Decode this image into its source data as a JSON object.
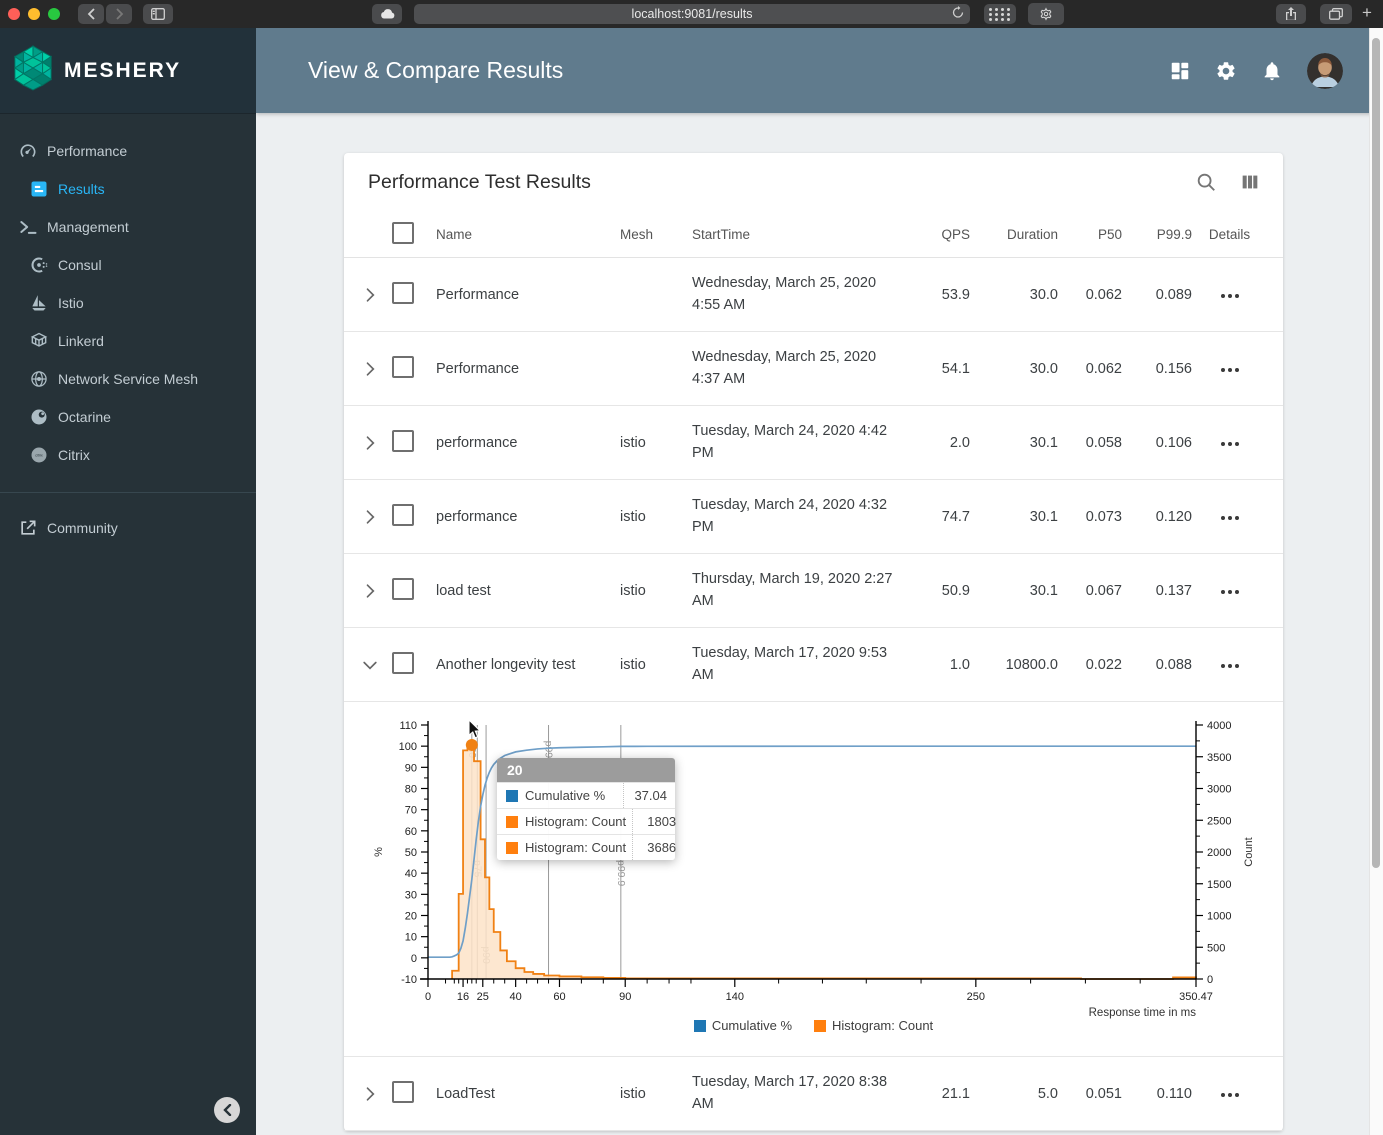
{
  "browser": {
    "url": "localhost:9081/results",
    "new_tab_label": "+"
  },
  "brand": {
    "name": "MESHERY"
  },
  "header": {
    "title": "View & Compare Results"
  },
  "sidebar": {
    "items": [
      {
        "label": "Performance",
        "icon": "gauge-icon",
        "indent": false,
        "active": false
      },
      {
        "label": "Results",
        "icon": "results-icon",
        "indent": true,
        "active": true
      },
      {
        "label": "Management",
        "icon": "terminal-icon",
        "indent": false,
        "active": false
      },
      {
        "label": "Consul",
        "icon": "consul-icon",
        "indent": true,
        "active": false
      },
      {
        "label": "Istio",
        "icon": "istio-icon",
        "indent": true,
        "active": false
      },
      {
        "label": "Linkerd",
        "icon": "linkerd-icon",
        "indent": true,
        "active": false
      },
      {
        "label": "Network Service Mesh",
        "icon": "nsm-icon",
        "indent": true,
        "active": false
      },
      {
        "label": "Octarine",
        "icon": "octarine-icon",
        "indent": true,
        "active": false
      },
      {
        "label": "Citrix",
        "icon": "citrix-icon",
        "indent": true,
        "active": false
      }
    ],
    "footer_item": {
      "label": "Community",
      "icon": "external-link-icon"
    }
  },
  "card": {
    "title": "Performance Test Results"
  },
  "table": {
    "columns": [
      "Name",
      "Mesh",
      "StartTime",
      "QPS",
      "Duration",
      "P50",
      "P99.9",
      "Details"
    ],
    "rows": [
      {
        "name": "Performance",
        "mesh": "",
        "start": "Wednesday, March 25, 2020 4:55 AM",
        "qps": "53.9",
        "duration": "30.0",
        "p50": "0.062",
        "p999": "0.089",
        "expanded": false
      },
      {
        "name": "Performance",
        "mesh": "",
        "start": "Wednesday, March 25, 2020 4:37 AM",
        "qps": "54.1",
        "duration": "30.0",
        "p50": "0.062",
        "p999": "0.156",
        "expanded": false
      },
      {
        "name": "performance",
        "mesh": "istio",
        "start": "Tuesday, March 24, 2020 4:42 PM",
        "qps": "2.0",
        "duration": "30.1",
        "p50": "0.058",
        "p999": "0.106",
        "expanded": false
      },
      {
        "name": "performance",
        "mesh": "istio",
        "start": "Tuesday, March 24, 2020 4:32 PM",
        "qps": "74.7",
        "duration": "30.1",
        "p50": "0.073",
        "p999": "0.120",
        "expanded": false
      },
      {
        "name": "load test",
        "mesh": "istio",
        "start": "Thursday, March 19, 2020 2:27 AM",
        "qps": "50.9",
        "duration": "30.1",
        "p50": "0.067",
        "p999": "0.137",
        "expanded": false
      },
      {
        "name": "Another longevity test",
        "mesh": "istio",
        "start": "Tuesday, March 17, 2020 9:53 AM",
        "qps": "1.0",
        "duration": "10800.0",
        "p50": "0.022",
        "p999": "0.088",
        "expanded": true
      },
      {
        "name": "LoadTest",
        "mesh": "istio",
        "start": "Tuesday, March 17, 2020 8:38 AM",
        "qps": "21.1",
        "duration": "5.0",
        "p50": "0.051",
        "p999": "0.110",
        "expanded": false
      }
    ]
  },
  "chart_data": {
    "type": "histogram-and-cumulative-line",
    "xlabel": "Response time in ms",
    "ylabel_left": "%",
    "ylabel_right": "Count",
    "xlim": [
      0,
      350.47
    ],
    "ylim_left": [
      -10,
      110
    ],
    "ylim_right": [
      0,
      4000
    ],
    "x_ticks": [
      0,
      16,
      25,
      40,
      60,
      90,
      140,
      250,
      350.47
    ],
    "x_minor_ticks": [
      8,
      12,
      14,
      18,
      20,
      22,
      30,
      35,
      45,
      50,
      55,
      70,
      80,
      100,
      110,
      120,
      160,
      180,
      200,
      225,
      275,
      300,
      325
    ],
    "left_ticks": [
      -10,
      0,
      10,
      20,
      30,
      40,
      50,
      60,
      70,
      80,
      90,
      100,
      110
    ],
    "right_ticks": [
      0,
      500,
      1000,
      1500,
      2000,
      2500,
      3000,
      3500,
      4000
    ],
    "grid": false,
    "legend_position": "bottom-center",
    "percentiles": [
      {
        "label": "p50",
        "x": 20,
        "label_pos": 0.03
      },
      {
        "label": "p75",
        "x": 22.5,
        "label_pos": 0.5
      },
      {
        "label": "p90",
        "x": 26.5,
        "label_pos": 0.84
      },
      {
        "label": "p99",
        "x": 55,
        "label_pos": 0.03
      },
      {
        "label": "p99.9",
        "x": 88,
        "label_pos": 0.5
      }
    ],
    "series": [
      {
        "name": "Cumulative %",
        "type": "line",
        "axis": "left",
        "color": "#6f9fc8",
        "points": [
          [
            0,
            0.3
          ],
          [
            10,
            0.3
          ],
          [
            11,
            0.5
          ],
          [
            12,
            0.9
          ],
          [
            13,
            1.4
          ],
          [
            14,
            2.2
          ],
          [
            15,
            4.5
          ],
          [
            16,
            8
          ],
          [
            17,
            14
          ],
          [
            18,
            21
          ],
          [
            19,
            29
          ],
          [
            20,
            37.04
          ],
          [
            21,
            46.5
          ],
          [
            22,
            56
          ],
          [
            23,
            64.5
          ],
          [
            24,
            71.5
          ],
          [
            25,
            77
          ],
          [
            26,
            81.5
          ],
          [
            27,
            85
          ],
          [
            28,
            87.7
          ],
          [
            29,
            89.8
          ],
          [
            30,
            91.4
          ],
          [
            32,
            93.6
          ],
          [
            35,
            95.6
          ],
          [
            40,
            97.3
          ],
          [
            45,
            98.1
          ],
          [
            50,
            98.7
          ],
          [
            55,
            99.05
          ],
          [
            60,
            99.25
          ],
          [
            70,
            99.5
          ],
          [
            80,
            99.7
          ],
          [
            88,
            99.9
          ],
          [
            100,
            99.93
          ],
          [
            140,
            99.97
          ],
          [
            200,
            99.99
          ],
          [
            298,
            100
          ],
          [
            350.47,
            100
          ]
        ]
      },
      {
        "name": "Histogram: Count",
        "type": "histogram",
        "axis": "right",
        "color": "#f08114",
        "fill": "#fde3c8",
        "buckets": [
          {
            "from": 11,
            "to": 14,
            "count": 130
          },
          {
            "from": 14,
            "to": 16,
            "count": 1340
          },
          {
            "from": 16,
            "to": 18,
            "count": 3600
          },
          {
            "from": 18,
            "to": 21,
            "count": 3686
          },
          {
            "from": 21,
            "to": 24,
            "count": 3430
          },
          {
            "from": 24,
            "to": 26,
            "count": 2200
          },
          {
            "from": 26,
            "to": 28,
            "count": 1600
          },
          {
            "from": 28,
            "to": 30,
            "count": 1100
          },
          {
            "from": 30,
            "to": 33,
            "count": 740
          },
          {
            "from": 33,
            "to": 36,
            "count": 450
          },
          {
            "from": 36,
            "to": 40,
            "count": 280
          },
          {
            "from": 40,
            "to": 44,
            "count": 170
          },
          {
            "from": 44,
            "to": 48,
            "count": 110
          },
          {
            "from": 48,
            "to": 53,
            "count": 80
          },
          {
            "from": 53,
            "to": 60,
            "count": 55
          },
          {
            "from": 60,
            "to": 70,
            "count": 40
          },
          {
            "from": 70,
            "to": 80,
            "count": 28
          },
          {
            "from": 80,
            "to": 90,
            "count": 18
          },
          {
            "from": 90,
            "to": 298,
            "count": 10
          },
          {
            "from": 298,
            "to": 340,
            "count": 0
          },
          {
            "from": 340,
            "to": 350.47,
            "count": 25
          }
        ]
      }
    ],
    "marker": {
      "x": 20,
      "count": 3686,
      "color": "#f08114"
    },
    "tooltip": {
      "title": "20",
      "rows": [
        {
          "label": "Cumulative %",
          "value": "37.04",
          "color": "#1f77b4"
        },
        {
          "label": "Histogram: Count",
          "value": "1803",
          "color": "#ff7f0e"
        },
        {
          "label": "Histogram: Count",
          "value": "3686",
          "color": "#ff7f0e"
        }
      ]
    },
    "legend": [
      {
        "label": "Cumulative %",
        "color": "#1f77b4"
      },
      {
        "label": "Histogram: Count",
        "color": "#ff7f0e"
      }
    ]
  },
  "colors": {
    "accent": "#29b6f6",
    "appbar": "#607b8d",
    "sidebar": "#263238",
    "histogram_stroke": "#f08114",
    "histogram_fill": "#fde3c8",
    "cumulative_line": "#6f9fc8"
  }
}
